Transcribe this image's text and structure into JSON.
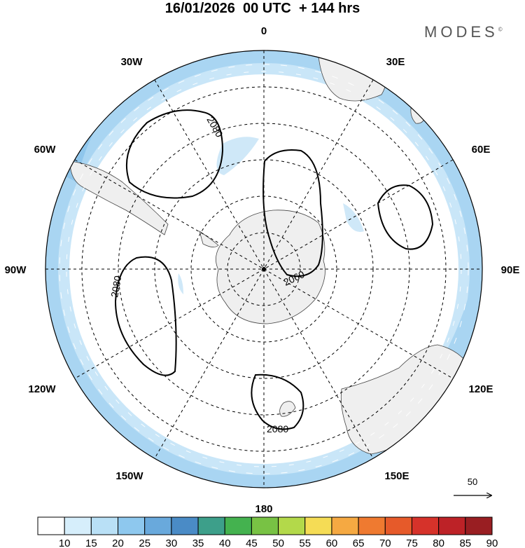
{
  "title": "16/01/2026  00 UTC  + 144 hrs",
  "brand": "MODES",
  "brand_mark": "©",
  "longitude_labels": {
    "deg0": "0",
    "e30": "30E",
    "e60": "60E",
    "e90": "90E",
    "e120": "120E",
    "e150": "150E",
    "deg180": "180",
    "w150": "150W",
    "w120": "120W",
    "w90": "90W",
    "w60": "60W",
    "w30": "30W"
  },
  "contour_labels": [
    "2080",
    "2080",
    "2060",
    "2080"
  ],
  "reference_vector": "50",
  "colorbar": {
    "labels": [
      "10",
      "15",
      "20",
      "25",
      "30",
      "35",
      "40",
      "45",
      "50",
      "55",
      "60",
      "65",
      "70",
      "75",
      "80",
      "85",
      "90"
    ],
    "colors": [
      "#ffffff",
      "#d6eefb",
      "#b9e0f6",
      "#8ec8ee",
      "#69a9dc",
      "#4a8bc6",
      "#3d9f8a",
      "#44b24f",
      "#78c244",
      "#b3d94a",
      "#f5dc55",
      "#f5a942",
      "#ef7a30",
      "#e65a2a",
      "#d6322a",
      "#bd2227",
      "#991e22"
    ]
  }
}
